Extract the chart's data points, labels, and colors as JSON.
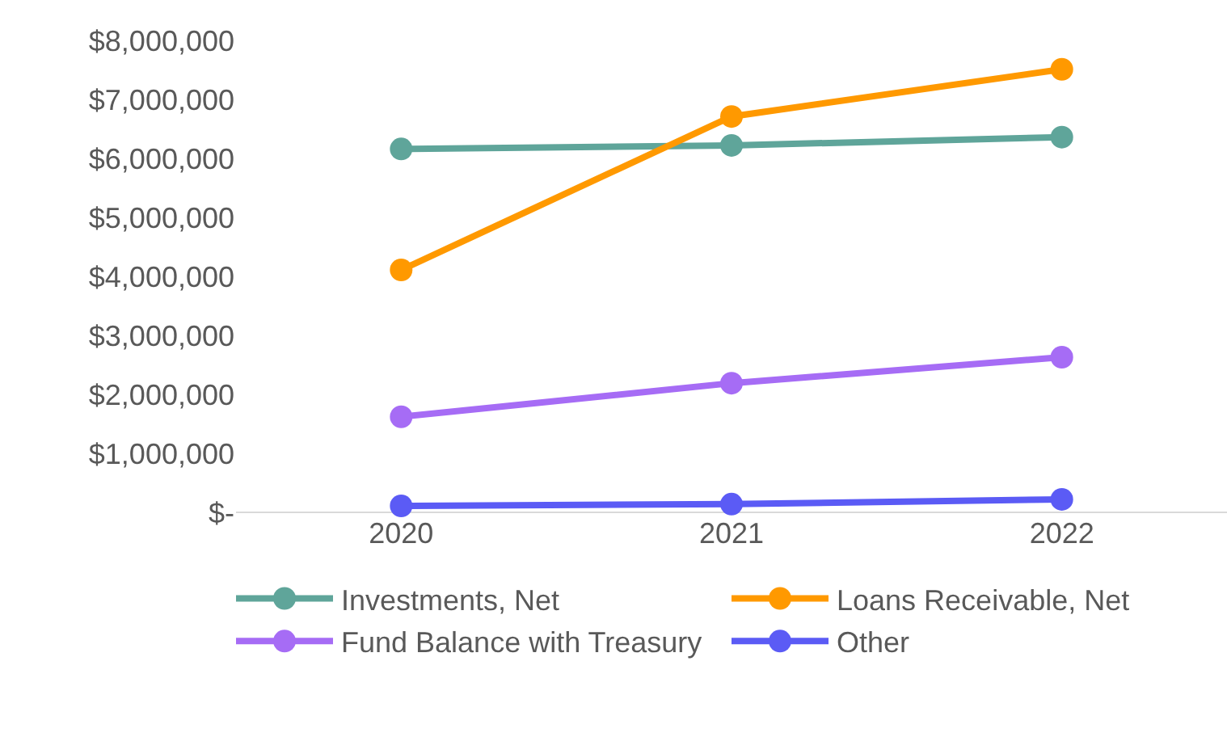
{
  "chart_data": {
    "type": "line",
    "categories": [
      "2020",
      "2021",
      "2022"
    ],
    "series": [
      {
        "name": "Investments, Net",
        "color": "#5fa59a",
        "values": [
          6160000,
          6220000,
          6360000
        ]
      },
      {
        "name": "Loans Receivable, Net",
        "color": "#ff9900",
        "values": [
          4110000,
          6710000,
          7510000
        ]
      },
      {
        "name": "Fund Balance with Treasury",
        "color": "#a66cf5",
        "values": [
          1620000,
          2190000,
          2630000
        ]
      },
      {
        "name": "Other",
        "color": "#5b5bf5",
        "values": [
          110000,
          140000,
          220000
        ]
      }
    ],
    "ylim": [
      0,
      8000000
    ],
    "yticks": [
      {
        "value": 0,
        "label": "$-"
      },
      {
        "value": 1000000,
        "label": "$1,000,000"
      },
      {
        "value": 2000000,
        "label": "$2,000,000"
      },
      {
        "value": 3000000,
        "label": "$3,000,000"
      },
      {
        "value": 4000000,
        "label": "$4,000,000"
      },
      {
        "value": 5000000,
        "label": "$5,000,000"
      },
      {
        "value": 6000000,
        "label": "$6,000,000"
      },
      {
        "value": 7000000,
        "label": "$7,000,000"
      },
      {
        "value": 8000000,
        "label": "$8,000,000"
      }
    ],
    "grid": false,
    "legend": "bottom",
    "marker": "circle",
    "line_style": "solid"
  }
}
